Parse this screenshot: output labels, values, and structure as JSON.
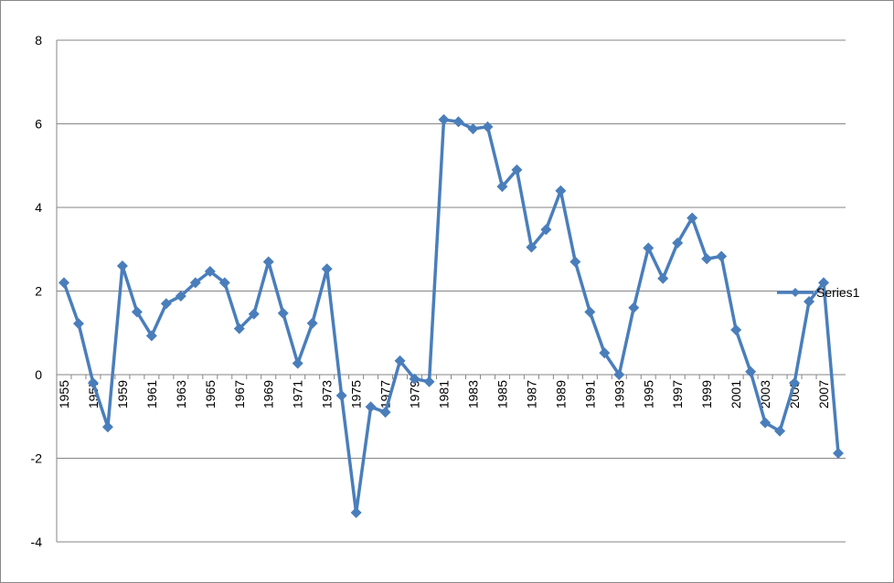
{
  "chart_data": {
    "type": "line",
    "categories": [
      "1955",
      null,
      "1957",
      null,
      "1959",
      null,
      "1961",
      null,
      "1963",
      null,
      "1965",
      null,
      "1967",
      null,
      "1969",
      null,
      "1971",
      null,
      "1973",
      null,
      "1975",
      null,
      "1977",
      null,
      "1979",
      null,
      "1981",
      null,
      "1983",
      null,
      "1985",
      null,
      "1987",
      null,
      "1989",
      null,
      "1991",
      null,
      "1993",
      null,
      "1995",
      null,
      "1997",
      null,
      "1999",
      null,
      "2001",
      null,
      "2003",
      null,
      "2005",
      null,
      "2007",
      null
    ],
    "series": [
      {
        "name": "Series1",
        "color": "#4a7ebb",
        "values": [
          2.2,
          1.22,
          -0.2,
          -1.25,
          2.6,
          1.5,
          0.93,
          1.7,
          1.88,
          2.2,
          2.47,
          2.2,
          1.1,
          1.45,
          2.7,
          1.47,
          0.27,
          1.23,
          2.53,
          -0.5,
          -3.3,
          -0.77,
          -0.9,
          0.33,
          -0.1,
          -0.17,
          6.1,
          6.05,
          5.88,
          5.93,
          4.5,
          4.9,
          3.05,
          3.47,
          4.4,
          2.7,
          1.5,
          0.52,
          0.0,
          1.6,
          3.03,
          2.3,
          3.15,
          3.75,
          2.77,
          2.83,
          1.07,
          0.07,
          -1.15,
          -1.35,
          -0.2,
          1.75,
          2.2,
          -1.88
        ]
      }
    ],
    "ylim": [
      -4,
      8
    ],
    "yticks": [
      -4,
      -2,
      0,
      2,
      4,
      6,
      8
    ],
    "grid": true,
    "legend": "right"
  }
}
